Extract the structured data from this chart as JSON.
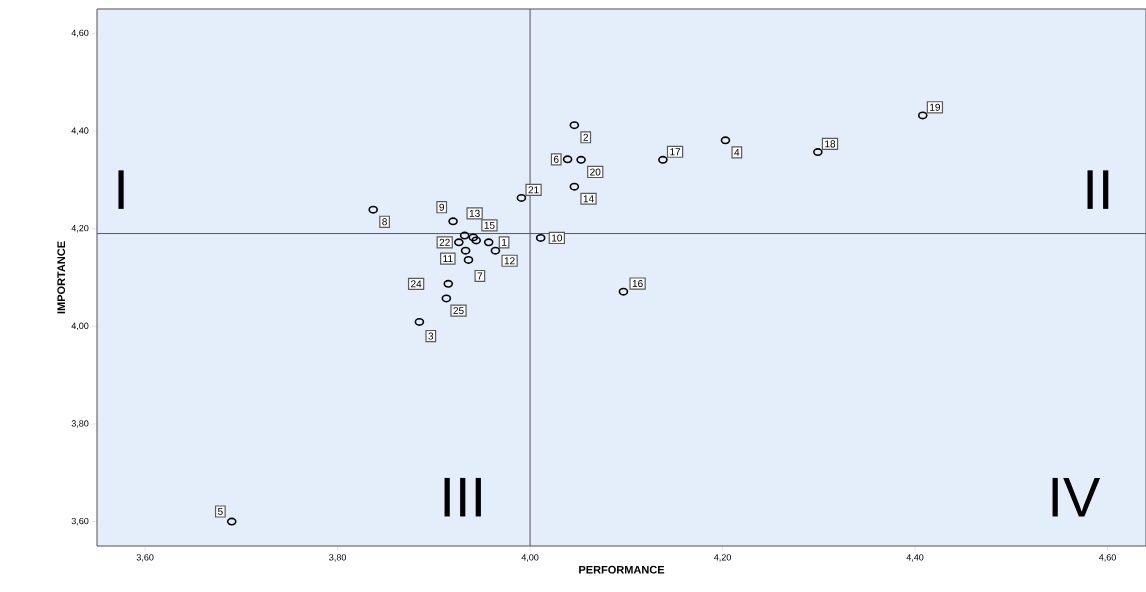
{
  "chart_data": {
    "type": "scatter",
    "xlabel": "PERFORMANCE",
    "ylabel": "IMPORTANCE",
    "color": "#000000",
    "marker": "circle",
    "x": [
      3.957,
      4.046,
      3.885,
      4.203,
      3.69,
      4.039,
      3.936,
      3.837,
      3.92,
      4.011,
      3.933,
      3.964,
      3.932,
      4.046,
      3.941,
      4.097,
      4.138,
      4.299,
      4.408,
      4.053,
      3.991,
      3.926,
      3.915,
      3.913,
      3.944
    ],
    "values": [
      4.172,
      4.412,
      4.009,
      4.381,
      3.6,
      4.342,
      4.136,
      4.239,
      4.215,
      4.181,
      4.155,
      4.155,
      4.186,
      4.286,
      4.182,
      4.071,
      4.341,
      4.357,
      4.432,
      4.341,
      4.263,
      4.172,
      4.087,
      4.057,
      4.176
    ],
    "xlim": [
      3.55,
      4.64
    ],
    "ylim": [
      3.55,
      4.65
    ],
    "xticks": [
      {
        "value": 3.6,
        "label": "3,60"
      },
      {
        "value": 3.8,
        "label": "3,80"
      },
      {
        "value": 4.0,
        "label": "4,00"
      },
      {
        "value": 4.2,
        "label": "4,20"
      },
      {
        "value": 4.4,
        "label": "4,40"
      },
      {
        "value": 4.6,
        "label": "4,60"
      }
    ],
    "yticks": [
      {
        "value": 3.6,
        "label": "3,60"
      },
      {
        "value": 3.8,
        "label": "3,80"
      },
      {
        "value": 4.0,
        "label": "4,00"
      },
      {
        "value": 4.2,
        "label": "4,20"
      },
      {
        "value": 4.4,
        "label": "4,40"
      },
      {
        "value": 4.6,
        "label": "4,60"
      }
    ],
    "ref_lines": [
      {
        "axis": "x",
        "value": 4.0,
        "color": "#555555"
      },
      {
        "axis": "y",
        "value": 4.19,
        "color": "#555555"
      }
    ],
    "annotations": [
      {
        "text": "1",
        "x": 3.957,
        "y": 4.172
      },
      {
        "text": "2",
        "x": 4.046,
        "y": 4.412
      },
      {
        "text": "3",
        "x": 3.885,
        "y": 4.009
      },
      {
        "text": "4",
        "x": 4.203,
        "y": 4.381
      },
      {
        "text": "5",
        "x": 3.69,
        "y": 3.6
      },
      {
        "text": "6",
        "x": 4.039,
        "y": 4.342
      },
      {
        "text": "7",
        "x": 3.936,
        "y": 4.136
      },
      {
        "text": "8",
        "x": 3.837,
        "y": 4.239
      },
      {
        "text": "9",
        "x": 3.92,
        "y": 4.215
      },
      {
        "text": "10",
        "x": 4.011,
        "y": 4.181
      },
      {
        "text": "11",
        "x": 3.933,
        "y": 4.155
      },
      {
        "text": "12",
        "x": 3.964,
        "y": 4.155
      },
      {
        "text": "13",
        "x": 3.932,
        "y": 4.186
      },
      {
        "text": "14",
        "x": 4.046,
        "y": 4.286
      },
      {
        "text": "15",
        "x": 3.941,
        "y": 4.182
      },
      {
        "text": "16",
        "x": 4.097,
        "y": 4.071
      },
      {
        "text": "17",
        "x": 4.138,
        "y": 4.341
      },
      {
        "text": "18",
        "x": 4.299,
        "y": 4.357
      },
      {
        "text": "19",
        "x": 4.408,
        "y": 4.432
      },
      {
        "text": "20",
        "x": 4.053,
        "y": 4.341
      },
      {
        "text": "21",
        "x": 3.991,
        "y": 4.263
      },
      {
        "text": "22",
        "x": 3.926,
        "y": 4.172
      },
      {
        "text": "24",
        "x": 3.915,
        "y": 4.087
      },
      {
        "text": "25",
        "x": 3.913,
        "y": 4.057
      },
      "I",
      "II",
      "III",
      "IV"
    ]
  }
}
